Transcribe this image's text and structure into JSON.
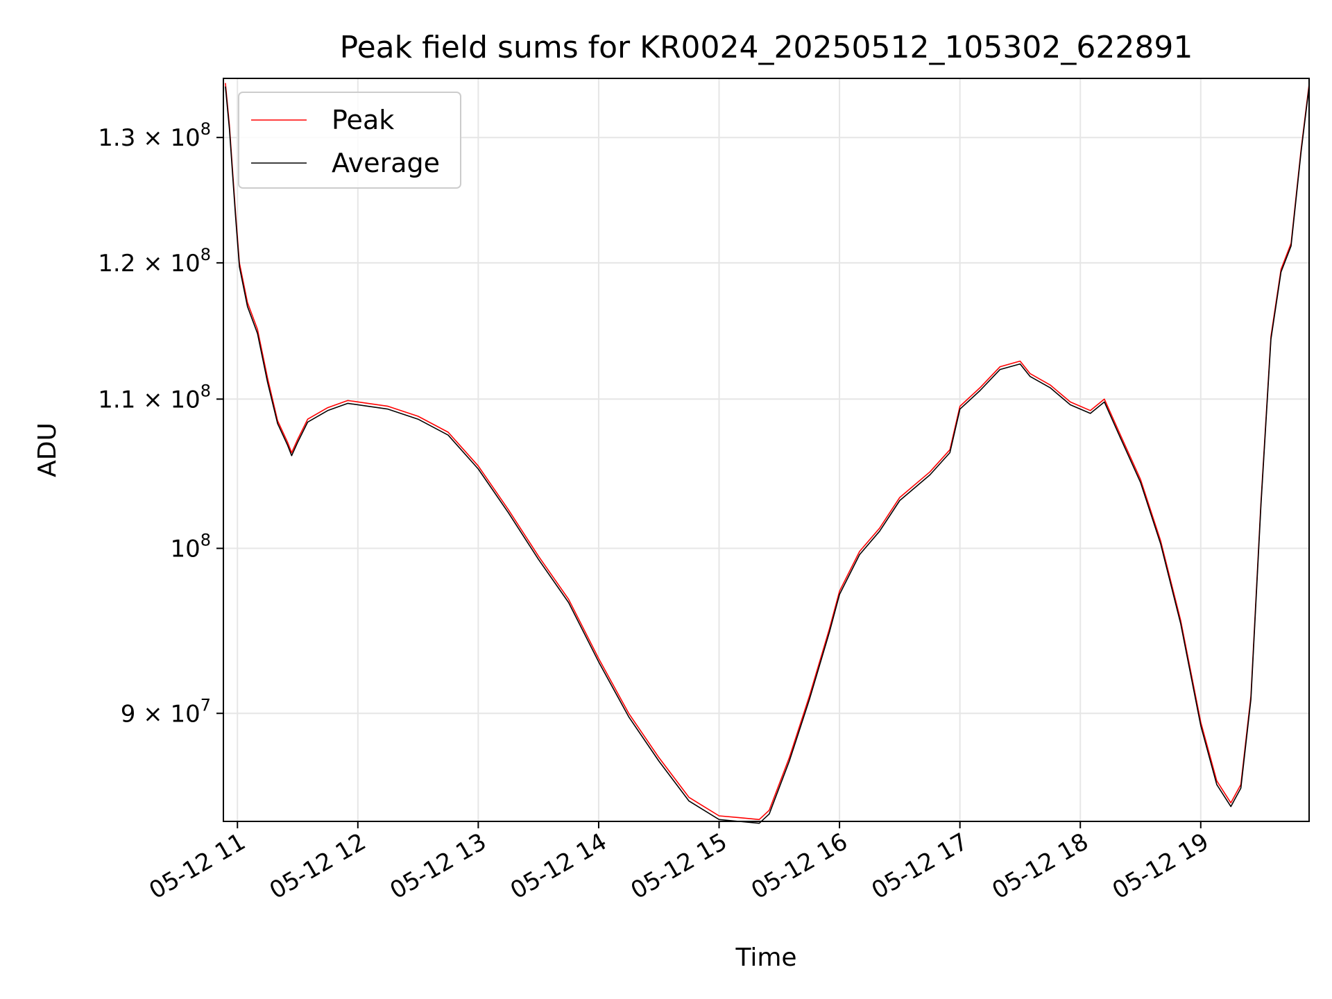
{
  "chart_data": {
    "type": "line",
    "title": "Peak field sums for KR0024_20250512_105302_622891",
    "xlabel": "Time",
    "ylabel": "ADU",
    "yscale": "log",
    "grid": true,
    "legend_position": "top-left",
    "xlim": [
      "2025-05-12 10:53",
      "2025-05-12 19:54"
    ],
    "ylim": [
      84000000,
      135000000
    ],
    "x_ticks": [
      {
        "value": "2025-05-12 11:00",
        "label": "05-12 11"
      },
      {
        "value": "2025-05-12 12:00",
        "label": "05-12 12"
      },
      {
        "value": "2025-05-12 13:00",
        "label": "05-12 13"
      },
      {
        "value": "2025-05-12 14:00",
        "label": "05-12 14"
      },
      {
        "value": "2025-05-12 15:00",
        "label": "05-12 15"
      },
      {
        "value": "2025-05-12 16:00",
        "label": "05-12 16"
      },
      {
        "value": "2025-05-12 17:00",
        "label": "05-12 17"
      },
      {
        "value": "2025-05-12 18:00",
        "label": "05-12 18"
      },
      {
        "value": "2025-05-12 19:00",
        "label": "05-12 19"
      }
    ],
    "y_ticks": [
      {
        "value": 90000000,
        "mantissa": "9 × 10",
        "exp": "7"
      },
      {
        "value": 100000000,
        "mantissa": "10",
        "exp": "8"
      },
      {
        "value": 110000000,
        "mantissa": "1.1 × 10",
        "exp": "8"
      },
      {
        "value": 120000000,
        "mantissa": "1.2 × 10",
        "exp": "8"
      },
      {
        "value": 130000000,
        "mantissa": "1.3 × 10",
        "exp": "8"
      }
    ],
    "series": [
      {
        "name": "Peak",
        "color": "#ff0000",
        "points": [
          [
            "2025-05-12 10:54",
            134600000
          ],
          [
            "2025-05-12 10:56",
            131000000
          ],
          [
            "2025-05-12 10:59",
            124000000
          ],
          [
            "2025-05-12 11:01",
            120000000
          ],
          [
            "2025-05-12 11:05",
            117000000
          ],
          [
            "2025-05-12 11:10",
            115000000
          ],
          [
            "2025-05-12 11:15",
            111500000
          ],
          [
            "2025-05-12 11:20",
            108500000
          ],
          [
            "2025-05-12 11:25",
            107000000
          ],
          [
            "2025-05-12 11:27",
            106300000
          ],
          [
            "2025-05-12 11:30",
            107200000
          ],
          [
            "2025-05-12 11:35",
            108600000
          ],
          [
            "2025-05-12 11:45",
            109400000
          ],
          [
            "2025-05-12 11:55",
            109900000
          ],
          [
            "2025-05-12 12:05",
            109700000
          ],
          [
            "2025-05-12 12:15",
            109500000
          ],
          [
            "2025-05-12 12:30",
            108800000
          ],
          [
            "2025-05-12 12:45",
            107700000
          ],
          [
            "2025-05-12 13:00",
            105400000
          ],
          [
            "2025-05-12 13:15",
            102500000
          ],
          [
            "2025-05-12 13:30",
            99500000
          ],
          [
            "2025-05-12 13:45",
            96800000
          ],
          [
            "2025-05-12 14:00",
            93200000
          ],
          [
            "2025-05-12 14:15",
            90000000
          ],
          [
            "2025-05-12 14:30",
            87500000
          ],
          [
            "2025-05-12 14:45",
            85300000
          ],
          [
            "2025-05-12 15:00",
            84300000
          ],
          [
            "2025-05-12 15:10",
            84200000
          ],
          [
            "2025-05-12 15:20",
            84100000
          ],
          [
            "2025-05-12 15:25",
            84600000
          ],
          [
            "2025-05-12 15:35",
            87500000
          ],
          [
            "2025-05-12 15:45",
            91000000
          ],
          [
            "2025-05-12 15:55",
            95000000
          ],
          [
            "2025-05-12 16:00",
            97300000
          ],
          [
            "2025-05-12 16:10",
            99800000
          ],
          [
            "2025-05-12 16:20",
            101300000
          ],
          [
            "2025-05-12 16:30",
            103300000
          ],
          [
            "2025-05-12 16:45",
            105000000
          ],
          [
            "2025-05-12 16:55",
            106500000
          ],
          [
            "2025-05-12 17:00",
            109500000
          ],
          [
            "2025-05-12 17:10",
            110800000
          ],
          [
            "2025-05-12 17:20",
            112300000
          ],
          [
            "2025-05-12 17:30",
            112700000
          ],
          [
            "2025-05-12 17:35",
            111800000
          ],
          [
            "2025-05-12 17:45",
            111000000
          ],
          [
            "2025-05-12 17:55",
            109800000
          ],
          [
            "2025-05-12 18:05",
            109200000
          ],
          [
            "2025-05-12 18:12",
            110000000
          ],
          [
            "2025-05-12 18:20",
            107500000
          ],
          [
            "2025-05-12 18:30",
            104500000
          ],
          [
            "2025-05-12 18:40",
            100500000
          ],
          [
            "2025-05-12 18:50",
            95500000
          ],
          [
            "2025-05-12 19:00",
            89500000
          ],
          [
            "2025-05-12 19:08",
            86200000
          ],
          [
            "2025-05-12 19:15",
            85000000
          ],
          [
            "2025-05-12 19:20",
            86000000
          ],
          [
            "2025-05-12 19:25",
            91000000
          ],
          [
            "2025-05-12 19:30",
            103000000
          ],
          [
            "2025-05-12 19:35",
            114500000
          ],
          [
            "2025-05-12 19:40",
            119500000
          ],
          [
            "2025-05-12 19:45",
            121500000
          ],
          [
            "2025-05-12 19:50",
            129000000
          ],
          [
            "2025-05-12 19:54",
            134500000
          ]
        ]
      },
      {
        "name": "Average",
        "color": "#000000",
        "points": [
          [
            "2025-05-12 10:54",
            134300000
          ],
          [
            "2025-05-12 10:56",
            130700000
          ],
          [
            "2025-05-12 10:59",
            123700000
          ],
          [
            "2025-05-12 11:01",
            119700000
          ],
          [
            "2025-05-12 11:05",
            116700000
          ],
          [
            "2025-05-12 11:10",
            114700000
          ],
          [
            "2025-05-12 11:15",
            111200000
          ],
          [
            "2025-05-12 11:20",
            108300000
          ],
          [
            "2025-05-12 11:25",
            106800000
          ],
          [
            "2025-05-12 11:27",
            106100000
          ],
          [
            "2025-05-12 11:30",
            107000000
          ],
          [
            "2025-05-12 11:35",
            108400000
          ],
          [
            "2025-05-12 11:45",
            109200000
          ],
          [
            "2025-05-12 11:55",
            109700000
          ],
          [
            "2025-05-12 12:05",
            109500000
          ],
          [
            "2025-05-12 12:15",
            109300000
          ],
          [
            "2025-05-12 12:30",
            108600000
          ],
          [
            "2025-05-12 12:45",
            107500000
          ],
          [
            "2025-05-12 13:00",
            105200000
          ],
          [
            "2025-05-12 13:15",
            102300000
          ],
          [
            "2025-05-12 13:30",
            99300000
          ],
          [
            "2025-05-12 13:45",
            96600000
          ],
          [
            "2025-05-12 14:00",
            93000000
          ],
          [
            "2025-05-12 14:15",
            89800000
          ],
          [
            "2025-05-12 14:30",
            87300000
          ],
          [
            "2025-05-12 14:45",
            85100000
          ],
          [
            "2025-05-12 15:00",
            84100000
          ],
          [
            "2025-05-12 15:10",
            84000000
          ],
          [
            "2025-05-12 15:20",
            83900000
          ],
          [
            "2025-05-12 15:25",
            84400000
          ],
          [
            "2025-05-12 15:35",
            87300000
          ],
          [
            "2025-05-12 15:45",
            90800000
          ],
          [
            "2025-05-12 15:55",
            94800000
          ],
          [
            "2025-05-12 16:00",
            97100000
          ],
          [
            "2025-05-12 16:10",
            99600000
          ],
          [
            "2025-05-12 16:20",
            101100000
          ],
          [
            "2025-05-12 16:30",
            103100000
          ],
          [
            "2025-05-12 16:45",
            104800000
          ],
          [
            "2025-05-12 16:55",
            106300000
          ],
          [
            "2025-05-12 17:00",
            109300000
          ],
          [
            "2025-05-12 17:10",
            110600000
          ],
          [
            "2025-05-12 17:20",
            112100000
          ],
          [
            "2025-05-12 17:30",
            112500000
          ],
          [
            "2025-05-12 17:35",
            111600000
          ],
          [
            "2025-05-12 17:45",
            110800000
          ],
          [
            "2025-05-12 17:55",
            109600000
          ],
          [
            "2025-05-12 18:05",
            109000000
          ],
          [
            "2025-05-12 18:12",
            109800000
          ],
          [
            "2025-05-12 18:20",
            107300000
          ],
          [
            "2025-05-12 18:30",
            104300000
          ],
          [
            "2025-05-12 18:40",
            100300000
          ],
          [
            "2025-05-12 18:50",
            95300000
          ],
          [
            "2025-05-12 19:00",
            89300000
          ],
          [
            "2025-05-12 19:08",
            86000000
          ],
          [
            "2025-05-12 19:15",
            84800000
          ],
          [
            "2025-05-12 19:20",
            85800000
          ],
          [
            "2025-05-12 19:25",
            90800000
          ],
          [
            "2025-05-12 19:30",
            102800000
          ],
          [
            "2025-05-12 19:35",
            114300000
          ],
          [
            "2025-05-12 19:40",
            119300000
          ],
          [
            "2025-05-12 19:45",
            121300000
          ],
          [
            "2025-05-12 19:50",
            128800000
          ],
          [
            "2025-05-12 19:54",
            134300000
          ]
        ]
      }
    ]
  }
}
